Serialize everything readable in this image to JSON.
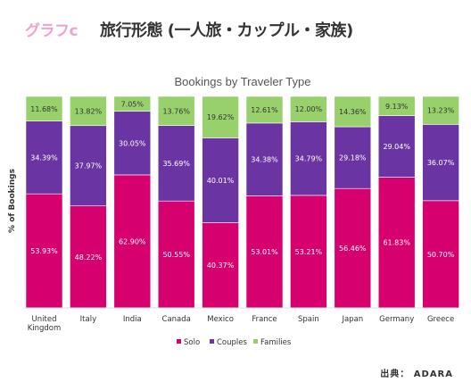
{
  "header": {
    "graph_label": "グラフc",
    "heading": "旅行形態 (一人旅・カップル・家族)"
  },
  "source": "出典： ADARA",
  "colors": {
    "Solo": "#d6006f",
    "Couples": "#6a35a3",
    "Families": "#98d16b"
  },
  "chart_data": {
    "type": "bar",
    "stacked": true,
    "title": "Bookings by Traveler Type",
    "xlabel": "",
    "ylabel": "% of Bookings",
    "ylim": [
      0,
      100
    ],
    "grid": false,
    "legend": "bottom",
    "categories": [
      "United Kingdom",
      "Italy",
      "India",
      "Canada",
      "Mexico",
      "France",
      "Spain",
      "Japan",
      "Germany",
      "Greece"
    ],
    "series": [
      {
        "name": "Solo",
        "values": [
          53.93,
          48.22,
          62.9,
          50.55,
          40.37,
          53.01,
          53.21,
          56.46,
          61.83,
          50.7
        ],
        "labels": [
          "53.93%",
          "48.22%",
          "62.90%",
          "50.55%",
          "40.37%",
          "53.01%",
          "53.21%",
          "56.46%",
          "61.83%",
          "50.70%"
        ]
      },
      {
        "name": "Couples",
        "values": [
          34.39,
          37.97,
          30.05,
          35.69,
          40.01,
          34.38,
          34.79,
          29.18,
          29.04,
          36.07
        ],
        "labels": [
          "34.39%",
          "37.97%",
          "30.05%",
          "35.69%",
          "40.01%",
          "34.38%",
          "34.79%",
          "29.18%",
          "29.04%",
          "36.07%"
        ]
      },
      {
        "name": "Families",
        "values": [
          11.68,
          13.82,
          7.05,
          13.76,
          19.62,
          12.61,
          12.0,
          14.36,
          9.13,
          13.23
        ],
        "labels": [
          "11.68%",
          "13.82%",
          "7.05%",
          "13.76%",
          "19.62%",
          "12.61%",
          "12.00%",
          "14.36%",
          "9.13%",
          "13.23%"
        ]
      }
    ]
  }
}
